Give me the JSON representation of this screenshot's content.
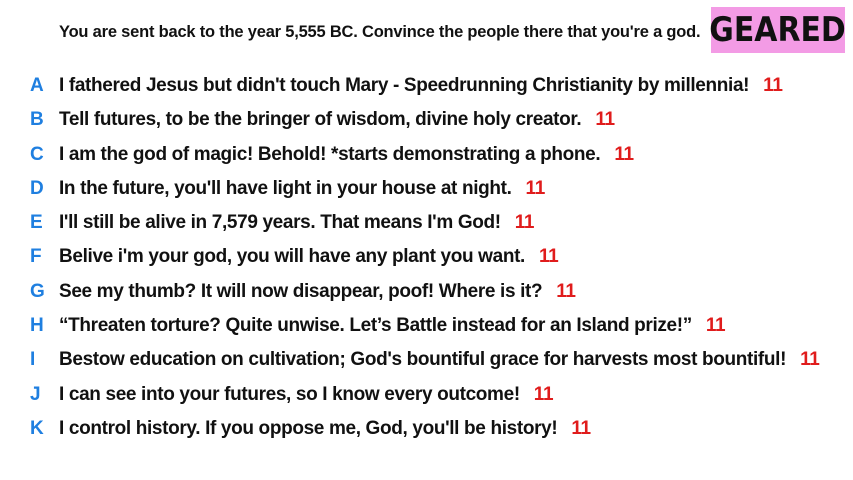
{
  "prompt": "You are sent back to the year 5,555 BC. Convince the people there that you're a god.",
  "badge": {
    "label": "GEARED",
    "color": "#f39be5"
  },
  "colors": {
    "letter": "#1f7fe0",
    "score": "#e01c1c",
    "text": "#111111"
  },
  "answers": [
    {
      "letter": "A",
      "text": "I fathered Jesus but didn't touch Mary - Speedrunning Christianity by millennia!",
      "score": "11"
    },
    {
      "letter": "B",
      "text": "Tell futures, to be the bringer of wisdom, divine holy creator.",
      "score": "11"
    },
    {
      "letter": "C",
      "text": "I am the god of magic! Behold! *starts demonstrating a phone.",
      "score": "11"
    },
    {
      "letter": "D",
      "text": "In the future, you'll have light in your house at night.",
      "score": "11"
    },
    {
      "letter": "E",
      "text": "I'll still be alive in 7,579 years. That means I'm God!",
      "score": "11"
    },
    {
      "letter": "F",
      "text": "Belive i'm your god, you will have any plant you want.",
      "score": "11"
    },
    {
      "letter": "G",
      "text": "See my thumb? It will now disappear, poof! Where is it?",
      "score": "11"
    },
    {
      "letter": "H",
      "text": "“Threaten torture? Quite unwise. Let’s Battle instead for an Island prize!”",
      "score": "11"
    },
    {
      "letter": "I",
      "text": "Bestow education on cultivation; God's bountiful grace for harvests most bountiful!",
      "score": "11"
    },
    {
      "letter": "J",
      "text": "I can see into your futures, so I know every outcome!",
      "score": "11"
    },
    {
      "letter": "K",
      "text": "I control history. If you oppose me, God, you'll be history!",
      "score": "11"
    }
  ]
}
